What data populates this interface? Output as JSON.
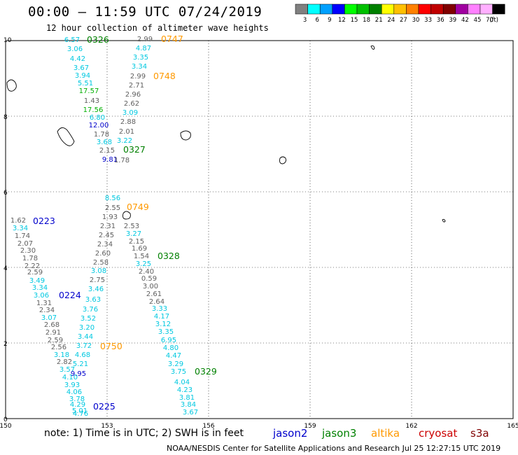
{
  "header": {
    "title": "00:00 – 11:59 UTC 07/24/2019",
    "subtitle": "12 hour collection of altimeter wave heights"
  },
  "scale": {
    "colors": [
      "#808080",
      "#00ffff",
      "#00a0ff",
      "#0000ff",
      "#00ff00",
      "#00c000",
      "#008000",
      "#ffff00",
      "#ffc000",
      "#ff8000",
      "#ff0000",
      "#c00000",
      "#800000",
      "#a000a0",
      "#ff80ff",
      "#ffb0ff",
      "#000000"
    ],
    "labels": [
      "3",
      "6",
      "9",
      "12",
      "15",
      "18",
      "21",
      "24",
      "27",
      "30",
      "33",
      "36",
      "39",
      "42",
      "45",
      "70",
      "(ft)"
    ]
  },
  "axes": {
    "x_ticks": [
      "150",
      "153",
      "156",
      "159",
      "162",
      "165"
    ],
    "y_ticks": [
      "0",
      "2",
      "4",
      "6",
      "8",
      "10"
    ]
  },
  "passes": [
    {
      "label": "0326",
      "sat": "jason3",
      "color": "#008000"
    },
    {
      "label": "0747",
      "sat": "altika",
      "color": "#ff9900"
    },
    {
      "label": "0748",
      "sat": "altika",
      "color": "#ff9900"
    },
    {
      "label": "0327",
      "sat": "jason3",
      "color": "#008000"
    },
    {
      "label": "0749",
      "sat": "altika",
      "color": "#ff9900"
    },
    {
      "label": "0223",
      "sat": "jason2",
      "color": "#0000cc"
    },
    {
      "label": "0328",
      "sat": "jason3",
      "color": "#008000"
    },
    {
      "label": "0224",
      "sat": "jason2",
      "color": "#0000cc"
    },
    {
      "label": "0750",
      "sat": "altika",
      "color": "#ff9900"
    },
    {
      "label": "0329",
      "sat": "jason3",
      "color": "#008000"
    },
    {
      "label": "0225",
      "sat": "jason2",
      "color": "#0000cc"
    }
  ],
  "wave_heights": [
    {
      "v": "6.57",
      "c": "#00c8e0"
    },
    {
      "v": "3.06",
      "c": "#00c8e0"
    },
    {
      "v": "4.42",
      "c": "#00c8e0"
    },
    {
      "v": "3.67",
      "c": "#00c8e0"
    },
    {
      "v": "3.94",
      "c": "#00c8e0"
    },
    {
      "v": "5.51",
      "c": "#00c8e0"
    },
    {
      "v": "17.57",
      "c": "#00b000"
    },
    {
      "v": "1.43",
      "c": "#606060"
    },
    {
      "v": "17.56",
      "c": "#00b000"
    },
    {
      "v": "6.80",
      "c": "#00c8e0"
    },
    {
      "v": "12.00",
      "c": "#0000cc"
    },
    {
      "v": "1.78",
      "c": "#606060"
    },
    {
      "v": "3.68",
      "c": "#00c8e0"
    },
    {
      "v": "2.15",
      "c": "#606060"
    },
    {
      "v": "9.81",
      "c": "#0000cc"
    },
    {
      "v": "2.99",
      "c": "#606060"
    },
    {
      "v": "4.87",
      "c": "#00c8e0"
    },
    {
      "v": "3.35",
      "c": "#00c8e0"
    },
    {
      "v": "3.34",
      "c": "#00c8e0"
    },
    {
      "v": "2.99",
      "c": "#606060"
    },
    {
      "v": "2.71",
      "c": "#606060"
    },
    {
      "v": "2.96",
      "c": "#606060"
    },
    {
      "v": "2.62",
      "c": "#606060"
    },
    {
      "v": "3.09",
      "c": "#00c8e0"
    },
    {
      "v": "2.88",
      "c": "#606060"
    },
    {
      "v": "2.01",
      "c": "#606060"
    },
    {
      "v": "3.22",
      "c": "#00c8e0"
    },
    {
      "v": "1.78",
      "c": "#606060"
    },
    {
      "v": "1.62",
      "c": "#606060"
    },
    {
      "v": "3.34",
      "c": "#00c8e0"
    },
    {
      "v": "1.74",
      "c": "#606060"
    },
    {
      "v": "2.07",
      "c": "#606060"
    },
    {
      "v": "2.30",
      "c": "#606060"
    },
    {
      "v": "1.78",
      "c": "#606060"
    },
    {
      "v": "2.22",
      "c": "#606060"
    },
    {
      "v": "2.59",
      "c": "#606060"
    },
    {
      "v": "3.49",
      "c": "#00c8e0"
    },
    {
      "v": "3.34",
      "c": "#00c8e0"
    },
    {
      "v": "3.06",
      "c": "#00c8e0"
    },
    {
      "v": "1.31",
      "c": "#606060"
    },
    {
      "v": "2.34",
      "c": "#606060"
    },
    {
      "v": "3.07",
      "c": "#00c8e0"
    },
    {
      "v": "2.68",
      "c": "#606060"
    },
    {
      "v": "2.91",
      "c": "#606060"
    },
    {
      "v": "2.59",
      "c": "#606060"
    },
    {
      "v": "2.56",
      "c": "#606060"
    },
    {
      "v": "3.18",
      "c": "#00c8e0"
    },
    {
      "v": "2.82",
      "c": "#606060"
    },
    {
      "v": "3.57",
      "c": "#00c8e0"
    },
    {
      "v": "4.10",
      "c": "#00c8e0"
    },
    {
      "v": "3.93",
      "c": "#00c8e0"
    },
    {
      "v": "4.06",
      "c": "#00c8e0"
    },
    {
      "v": "3.78",
      "c": "#00c8e0"
    },
    {
      "v": "5.01",
      "c": "#00c8e0"
    },
    {
      "v": "1.93",
      "c": "#606060"
    },
    {
      "v": "2.31",
      "c": "#606060"
    },
    {
      "v": "2.45",
      "c": "#606060"
    },
    {
      "v": "2.34",
      "c": "#606060"
    },
    {
      "v": "2.60",
      "c": "#606060"
    },
    {
      "v": "2.58",
      "c": "#606060"
    },
    {
      "v": "3.08",
      "c": "#00c8e0"
    },
    {
      "v": "2.75",
      "c": "#606060"
    },
    {
      "v": "3.46",
      "c": "#00c8e0"
    },
    {
      "v": "3.63",
      "c": "#00c8e0"
    },
    {
      "v": "3.76",
      "c": "#00c8e0"
    },
    {
      "v": "3.52",
      "c": "#00c8e0"
    },
    {
      "v": "3.20",
      "c": "#00c8e0"
    },
    {
      "v": "3.44",
      "c": "#00c8e0"
    },
    {
      "v": "3.72",
      "c": "#00c8e0"
    },
    {
      "v": "4.68",
      "c": "#00c8e0"
    },
    {
      "v": "5.21",
      "c": "#00c8e0"
    },
    {
      "v": "9.95",
      "c": "#0000cc"
    },
    {
      "v": "4.29",
      "c": "#00c8e0"
    },
    {
      "v": "4.76",
      "c": "#00c8e0"
    },
    {
      "v": "2.53",
      "c": "#606060"
    },
    {
      "v": "3.27",
      "c": "#00c8e0"
    },
    {
      "v": "2.15",
      "c": "#606060"
    },
    {
      "v": "1.69",
      "c": "#606060"
    },
    {
      "v": "1.54",
      "c": "#606060"
    },
    {
      "v": "3.25",
      "c": "#00c8e0"
    },
    {
      "v": "2.40",
      "c": "#606060"
    },
    {
      "v": "0.59",
      "c": "#606060"
    },
    {
      "v": "3.00",
      "c": "#606060"
    },
    {
      "v": "2.61",
      "c": "#606060"
    },
    {
      "v": "2.64",
      "c": "#606060"
    },
    {
      "v": "3.33",
      "c": "#00c8e0"
    },
    {
      "v": "4.17",
      "c": "#00c8e0"
    },
    {
      "v": "3.12",
      "c": "#00c8e0"
    },
    {
      "v": "3.35",
      "c": "#00c8e0"
    },
    {
      "v": "6.95",
      "c": "#00c8e0"
    },
    {
      "v": "4.80",
      "c": "#00c8e0"
    },
    {
      "v": "4.47",
      "c": "#00c8e0"
    },
    {
      "v": "3.29",
      "c": "#00c8e0"
    },
    {
      "v": "3.75",
      "c": "#00c8e0"
    },
    {
      "v": "4.04",
      "c": "#00c8e0"
    },
    {
      "v": "4.23",
      "c": "#00c8e0"
    },
    {
      "v": "3.81",
      "c": "#00c8e0"
    },
    {
      "v": "3.84",
      "c": "#00c8e0"
    },
    {
      "v": "3.67",
      "c": "#00c8e0"
    },
    {
      "v": "8.56",
      "c": "#00c8e0"
    },
    {
      "v": "2.55",
      "c": "#606060"
    }
  ],
  "legend": [
    {
      "name": "jason2",
      "color": "#0000cc"
    },
    {
      "name": "jason3",
      "color": "#008000"
    },
    {
      "name": "altika",
      "color": "#ff9900"
    },
    {
      "name": "cryosat",
      "color": "#cc0000"
    },
    {
      "name": "s3a",
      "color": "#800000"
    }
  ],
  "note": "note: 1) Time is in UTC; 2) SWH is in feet",
  "credit": "NOAA/NESDIS Center for Satellite Applications and Research   Jul 25 12:27:15 UTC 2019"
}
